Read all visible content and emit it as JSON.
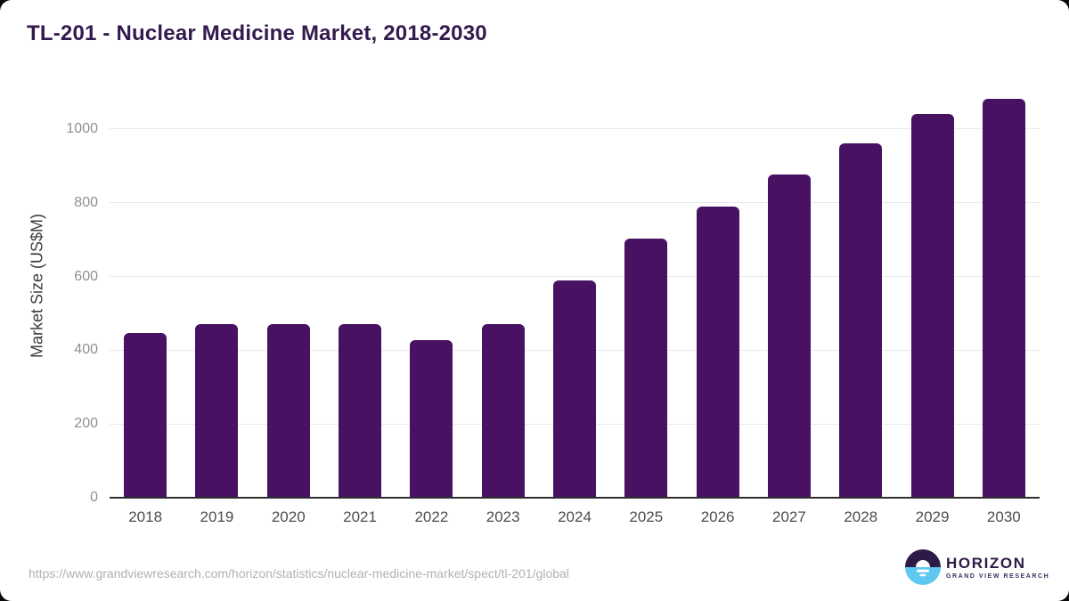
{
  "header": {
    "title": "TL-201 - Nuclear Medicine Market, 2018-2030"
  },
  "chart_data": {
    "type": "bar",
    "title": "TL-201 - Nuclear Medicine Market, 2018-2030",
    "xlabel": "",
    "ylabel": "Market Size (US$M)",
    "categories": [
      "2018",
      "2019",
      "2020",
      "2021",
      "2022",
      "2023",
      "2024",
      "2025",
      "2026",
      "2027",
      "2028",
      "2029",
      "2030"
    ],
    "values": [
      446,
      472,
      470,
      472,
      427,
      472,
      590,
      703,
      790,
      877,
      960,
      1040,
      1083
    ],
    "yticks": [
      0,
      200,
      400,
      600,
      800,
      1000
    ],
    "ylim": [
      0,
      1120
    ],
    "grid": true,
    "legend": "none",
    "bar_color": "#481161",
    "gridline_color": "#e9e9e9",
    "axis_color": "#2e2e2e"
  },
  "footer": {
    "source_url": "https://www.grandviewresearch.com/horizon/statistics/nuclear-medicine-market/spect/tl-201/global",
    "logo": {
      "name": "HORIZON",
      "tagline": "GRAND VIEW RESEARCH",
      "mark_top_color": "#2e1a47",
      "mark_bottom_color": "#5ec8f0"
    }
  },
  "colors": {
    "title_text": "#33194e",
    "bar": "#481161",
    "y_tick_text": "#8f8f8f",
    "x_tick_text": "#4d4d4d",
    "source_text": "#b1b1b1"
  }
}
